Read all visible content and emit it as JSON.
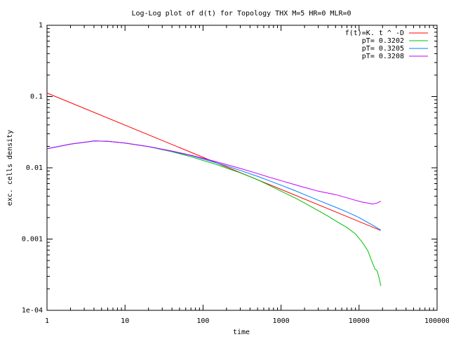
{
  "chart_data": {
    "type": "line",
    "title": "Log-Log plot of d(t) for Topology THX M=5 HR=0 MLR=0",
    "xlabel": "time",
    "ylabel": "exc. cells density",
    "xscale": "log",
    "yscale": "log",
    "xlim": [
      1,
      100000
    ],
    "ylim": [
      0.0001,
      1
    ],
    "grid": false,
    "legend_position": "top-right",
    "x_ticks": [
      {
        "value": 1,
        "label": "1"
      },
      {
        "value": 10,
        "label": "10"
      },
      {
        "value": 100,
        "label": "100"
      },
      {
        "value": 1000,
        "label": "1000"
      },
      {
        "value": 10000,
        "label": "10000"
      },
      {
        "value": 100000,
        "label": "100000"
      }
    ],
    "y_ticks": [
      {
        "value": 1,
        "label": "1"
      },
      {
        "value": 0.1,
        "label": "0.1"
      },
      {
        "value": 0.01,
        "label": "0.01"
      },
      {
        "value": 0.001,
        "label": "0.001"
      },
      {
        "value": 0.0001,
        "label": "1e-04"
      }
    ],
    "series": [
      {
        "name": "f(t)=K. t ^ -D",
        "color": "#ff0000",
        "points": [
          [
            1,
            0.112
          ],
          [
            19000,
            0.00132
          ]
        ]
      },
      {
        "name": "pT= 0.3202",
        "color": "#00c000",
        "points": [
          [
            1,
            0.0185
          ],
          [
            2,
            0.0215
          ],
          [
            4,
            0.0238
          ],
          [
            6,
            0.0235
          ],
          [
            10,
            0.0222
          ],
          [
            20,
            0.0198
          ],
          [
            40,
            0.0168
          ],
          [
            70,
            0.0143
          ],
          [
            100,
            0.0127
          ],
          [
            150,
            0.0111
          ],
          [
            200,
            0.0099
          ],
          [
            300,
            0.0085
          ],
          [
            500,
            0.0068
          ],
          [
            700,
            0.0057
          ],
          [
            1000,
            0.0047
          ],
          [
            1500,
            0.0038
          ],
          [
            2000,
            0.0032
          ],
          [
            3000,
            0.0025
          ],
          [
            4000,
            0.0021
          ],
          [
            5000,
            0.0018
          ],
          [
            7000,
            0.00145
          ],
          [
            9000,
            0.00118
          ],
          [
            11000,
            0.0009
          ],
          [
            13000,
            0.00068
          ],
          [
            14000,
            0.00055
          ],
          [
            15000,
            0.00045
          ],
          [
            16000,
            0.00038
          ],
          [
            17000,
            0.00036
          ],
          [
            18000,
            0.00029
          ],
          [
            19000,
            0.00022
          ]
        ]
      },
      {
        "name": "pT= 0.3205",
        "color": "#0080ff",
        "points": [
          [
            1,
            0.0185
          ],
          [
            2,
            0.0215
          ],
          [
            4,
            0.0238
          ],
          [
            6,
            0.0235
          ],
          [
            10,
            0.0222
          ],
          [
            20,
            0.0199
          ],
          [
            40,
            0.0171
          ],
          [
            70,
            0.0148
          ],
          [
            100,
            0.0133
          ],
          [
            150,
            0.0117
          ],
          [
            200,
            0.0106
          ],
          [
            300,
            0.0092
          ],
          [
            500,
            0.0076
          ],
          [
            700,
            0.0066
          ],
          [
            1000,
            0.0057
          ],
          [
            1500,
            0.0048
          ],
          [
            2000,
            0.0042
          ],
          [
            3000,
            0.0035
          ],
          [
            5000,
            0.0028
          ],
          [
            7000,
            0.0024
          ],
          [
            10000,
            0.002
          ],
          [
            13000,
            0.0017
          ],
          [
            16000,
            0.0015
          ],
          [
            19000,
            0.00133
          ]
        ]
      },
      {
        "name": "pT= 0.3208",
        "color": "#c000ff",
        "points": [
          [
            1,
            0.0185
          ],
          [
            2,
            0.0215
          ],
          [
            4,
            0.0238
          ],
          [
            6,
            0.0235
          ],
          [
            10,
            0.0222
          ],
          [
            20,
            0.0199
          ],
          [
            40,
            0.0172
          ],
          [
            70,
            0.015
          ],
          [
            100,
            0.0136
          ],
          [
            150,
            0.0121
          ],
          [
            200,
            0.0111
          ],
          [
            300,
            0.0098
          ],
          [
            500,
            0.0083
          ],
          [
            700,
            0.0074
          ],
          [
            1000,
            0.0066
          ],
          [
            1500,
            0.0058
          ],
          [
            2000,
            0.0053
          ],
          [
            3000,
            0.0047
          ],
          [
            5000,
            0.0042
          ],
          [
            7000,
            0.0038
          ],
          [
            9000,
            0.0035
          ],
          [
            11000,
            0.0033
          ],
          [
            13000,
            0.0032
          ],
          [
            15000,
            0.0031
          ],
          [
            17000,
            0.0032
          ],
          [
            19000,
            0.0034
          ]
        ]
      }
    ]
  }
}
